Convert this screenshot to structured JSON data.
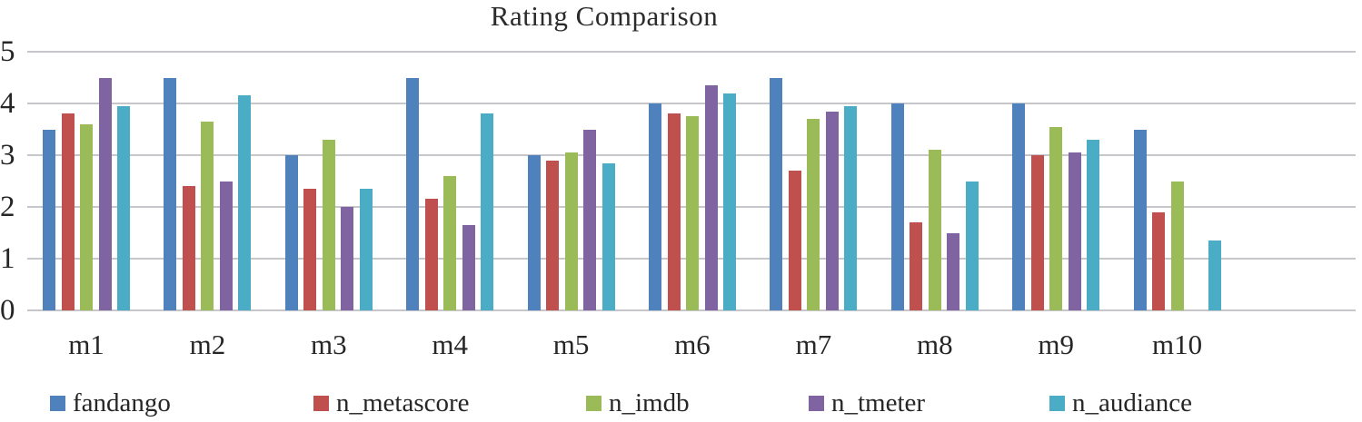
{
  "chart_data": {
    "type": "bar",
    "title": "Rating Comparison",
    "xlabel": "",
    "ylabel": "",
    "categories": [
      "m1",
      "m2",
      "m3",
      "m4",
      "m5",
      "m6",
      "m7",
      "m8",
      "m9",
      "m10"
    ],
    "series": [
      {
        "name": "fandango",
        "color": "#4F81BD",
        "values": [
          3.5,
          4.5,
          3.0,
          4.5,
          3.0,
          4.0,
          4.5,
          4.0,
          4.0,
          3.5
        ]
      },
      {
        "name": "n_metascore",
        "color": "#C0504D",
        "values": [
          3.8,
          2.4,
          2.35,
          2.15,
          2.9,
          3.8,
          2.7,
          1.7,
          3.0,
          1.9
        ]
      },
      {
        "name": "n_imdb",
        "color": "#9BBB59",
        "values": [
          3.6,
          3.65,
          3.3,
          2.6,
          3.05,
          3.75,
          3.7,
          3.1,
          3.55,
          2.5
        ]
      },
      {
        "name": "n_tmeter",
        "color": "#8064A2",
        "values": [
          4.5,
          2.5,
          2.0,
          1.65,
          3.5,
          4.35,
          3.85,
          1.5,
          3.05,
          0
        ]
      },
      {
        "name": "n_audiance",
        "color": "#4BACC6",
        "values": [
          3.95,
          4.15,
          2.35,
          3.8,
          2.85,
          4.2,
          3.95,
          2.5,
          3.3,
          1.35
        ]
      }
    ],
    "ylim": [
      0,
      5
    ],
    "yticks": [
      0,
      1,
      2,
      3,
      4,
      5
    ],
    "grid": true,
    "legend_position": "bottom",
    "gridline_color": "#c7c7cb",
    "background_color": "#ffffff"
  }
}
